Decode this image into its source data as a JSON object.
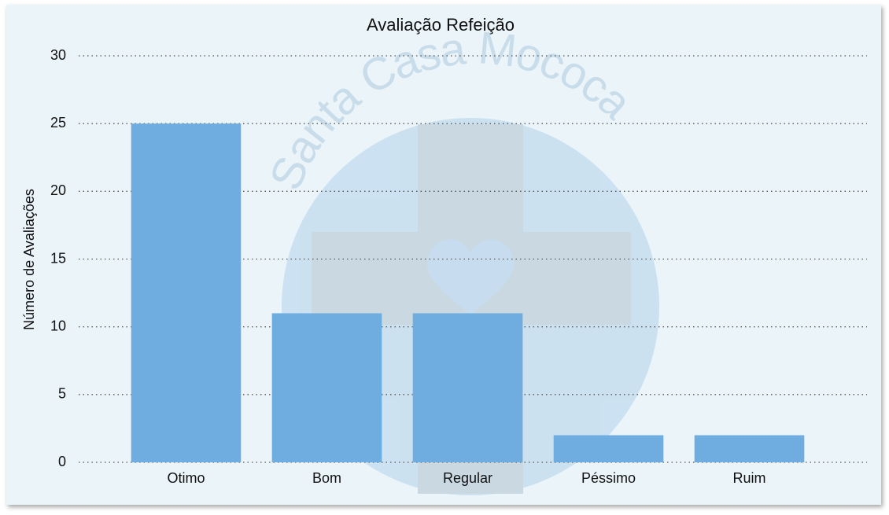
{
  "chart_data": {
    "type": "bar",
    "title": "Avaliação Refeição",
    "watermark": "Santa Casa Mococa",
    "y_label": "Número de Avaliações",
    "categories": [
      "Otimo",
      "Bom",
      "Regular",
      "Péssimo",
      "Ruim"
    ],
    "values": [
      25,
      11,
      11,
      2,
      2
    ],
    "color": "#6fade0",
    "ylim": [
      0,
      30
    ],
    "yticks": [
      0,
      5,
      10,
      15,
      20,
      25,
      30
    ],
    "grid": true
  }
}
